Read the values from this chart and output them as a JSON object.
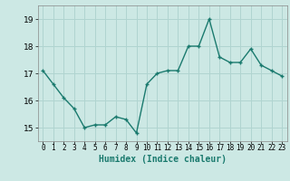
{
  "x": [
    0,
    1,
    2,
    3,
    4,
    5,
    6,
    7,
    8,
    9,
    10,
    11,
    12,
    13,
    14,
    15,
    16,
    17,
    18,
    19,
    20,
    21,
    22,
    23
  ],
  "y": [
    17.1,
    16.6,
    16.1,
    15.7,
    15.0,
    15.1,
    15.1,
    15.4,
    15.3,
    14.8,
    16.6,
    17.0,
    17.1,
    17.1,
    18.0,
    18.0,
    19.0,
    17.6,
    17.4,
    17.4,
    17.9,
    17.3,
    17.1,
    16.9
  ],
  "line_color": "#1a7a6e",
  "bg_color": "#cce8e4",
  "grid_color": "#b0d4d0",
  "xlabel": "Humidex (Indice chaleur)",
  "ylim": [
    14.5,
    19.5
  ],
  "xlim": [
    -0.5,
    23.5
  ],
  "yticks": [
    15,
    16,
    17,
    18,
    19
  ],
  "xticks": [
    0,
    1,
    2,
    3,
    4,
    5,
    6,
    7,
    8,
    9,
    10,
    11,
    12,
    13,
    14,
    15,
    16,
    17,
    18,
    19,
    20,
    21,
    22,
    23
  ],
  "xtick_labels": [
    "0",
    "1",
    "2",
    "3",
    "4",
    "5",
    "6",
    "7",
    "8",
    "9",
    "10",
    "11",
    "12",
    "13",
    "14",
    "15",
    "16",
    "17",
    "18",
    "19",
    "20",
    "21",
    "22",
    "23"
  ],
  "marker": "+",
  "markersize": 3.5,
  "linewidth": 1.0,
  "xlabel_fontsize": 7,
  "ytick_fontsize": 6.5,
  "xtick_fontsize": 5.5
}
